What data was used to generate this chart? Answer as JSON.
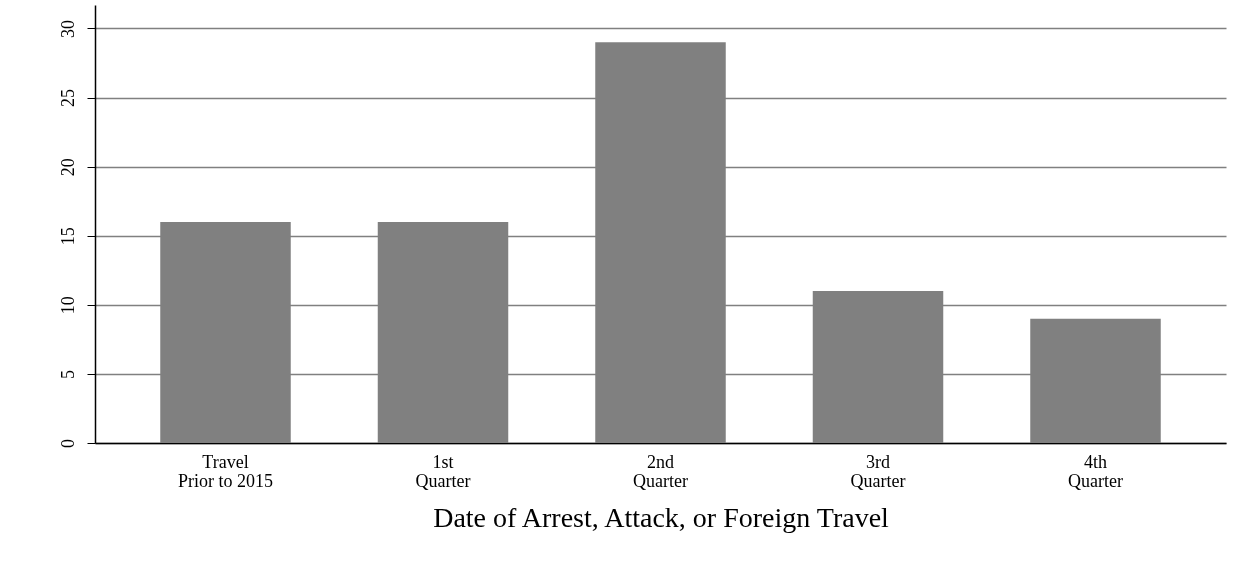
{
  "chart_data": {
    "type": "bar",
    "xlabel": "Date of Arrest, Attack, or Foreign Travel",
    "categories": [
      "Travel\nPrior to 2015",
      "1st\nQuarter",
      "2nd\nQuarter",
      "3rd\nQuarter",
      "4th\nQuarter"
    ],
    "values": [
      16,
      16,
      29,
      11,
      9
    ],
    "color": "#808080",
    "ylim": [
      0,
      31.7
    ],
    "yticks": [
      0,
      5,
      10,
      15,
      20,
      25,
      30
    ],
    "grid": "y"
  }
}
